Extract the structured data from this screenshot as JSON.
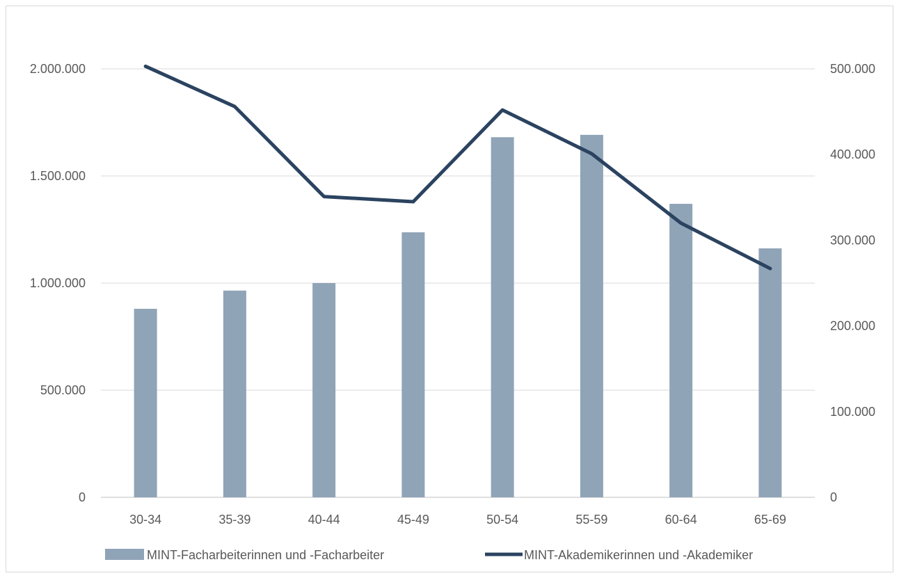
{
  "chart_data": {
    "type": "bar",
    "categories": [
      "30-34",
      "35-39",
      "40-44",
      "45-49",
      "50-54",
      "55-59",
      "60-64",
      "65-69"
    ],
    "series": [
      {
        "name": "MINT-Facharbeiterinnen und -Facharbeiter",
        "type": "bar",
        "axis": "left",
        "color": "#90a4b7",
        "values": [
          880000,
          965000,
          1000000,
          1237000,
          1681000,
          1692000,
          1370000,
          1162000
        ]
      },
      {
        "name": "MINT-Akademikerinnen und -Akademiker",
        "type": "line",
        "axis": "right",
        "color": "#2b4360",
        "values": [
          503000,
          456000,
          351000,
          345000,
          452000,
          401000,
          320000,
          267000
        ]
      }
    ],
    "y_left": {
      "ylim": [
        0,
        2000000
      ],
      "ticks": [
        0,
        500000,
        1000000,
        1500000,
        2000000
      ],
      "tick_labels": [
        "0",
        "500.000",
        "1.000.000",
        "1.500.000",
        "2.000.000"
      ]
    },
    "y_right": {
      "ylim": [
        0,
        500000
      ],
      "ticks": [
        0,
        100000,
        200000,
        300000,
        400000,
        500000
      ],
      "tick_labels": [
        "0",
        "100.000",
        "200.000",
        "300.000",
        "400.000",
        "500.000"
      ]
    },
    "grid": true,
    "legend": "bottom",
    "title": "",
    "xlabel": "",
    "ylabel": ""
  }
}
